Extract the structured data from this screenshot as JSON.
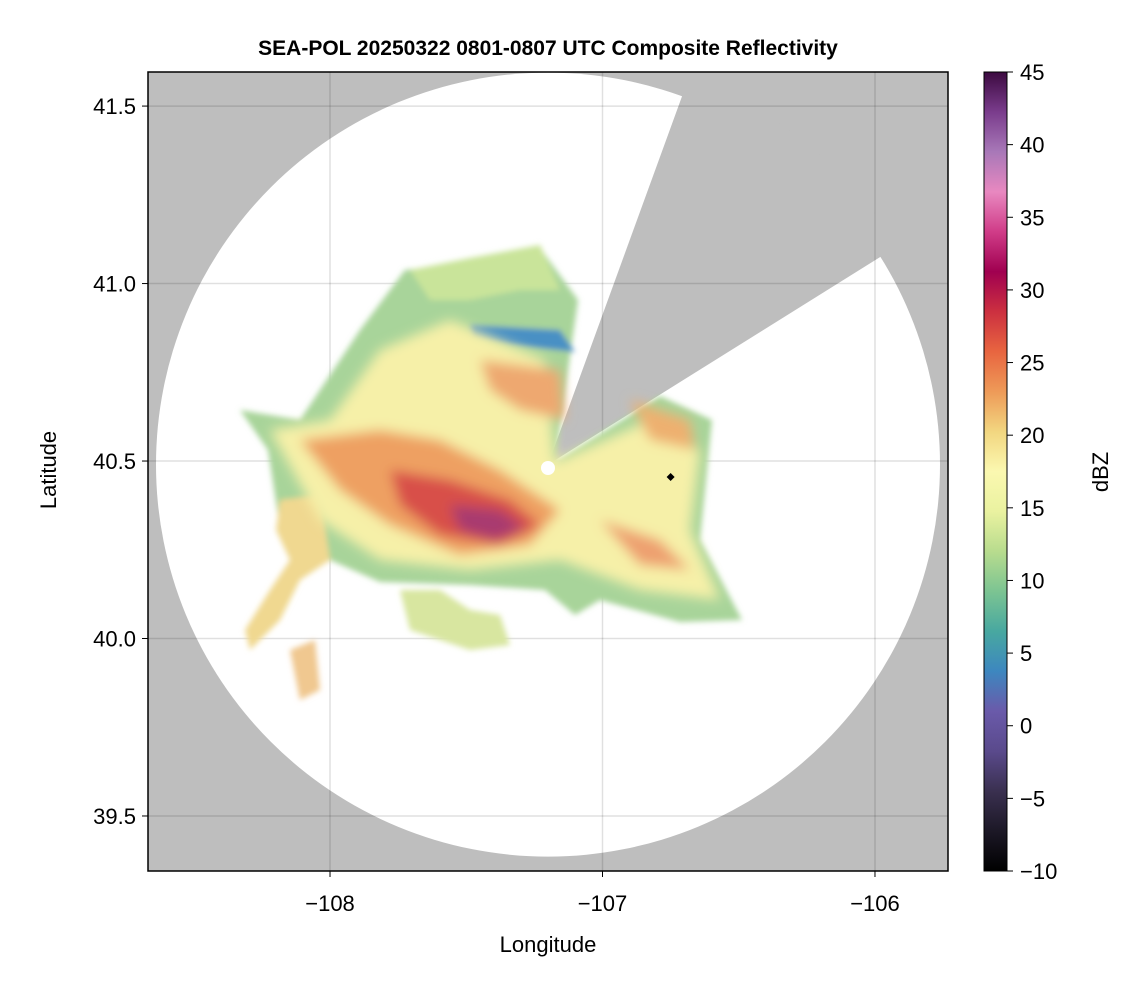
{
  "chart_data": {
    "type": "heatmap",
    "title": "SEA-POL 20250322 0801-0807 UTC Composite Reflectivity",
    "xlabel": "Longitude",
    "ylabel": "Latitude",
    "xlim": [
      -108.668,
      -105.732
    ],
    "ylim": [
      39.345,
      41.596
    ],
    "xticks": [
      -108,
      -107,
      -106
    ],
    "xtick_labels": [
      "−108",
      "−107",
      "−106"
    ],
    "yticks": [
      39.5,
      40.0,
      40.5,
      41.0,
      41.5
    ],
    "ytick_labels": [
      "39.5",
      "40.0",
      "40.5",
      "41.0",
      "41.5"
    ],
    "grid": true,
    "radar_center": {
      "lon": -107.2,
      "lat": 40.49
    },
    "radar_range_deg_lon": 1.43,
    "blocked_sector_bearing_deg": [
      20,
      58
    ],
    "marker": {
      "lon": -106.75,
      "lat": 40.455,
      "symbol": "diamond",
      "color": "#000000"
    },
    "colorbar": {
      "label": "dBZ",
      "range": [
        -10,
        45
      ],
      "ticks": [
        -10,
        -5,
        0,
        5,
        10,
        15,
        20,
        25,
        30,
        35,
        40,
        45
      ],
      "tick_labels": [
        "−10",
        "−5",
        "0",
        "5",
        "10",
        "15",
        "20",
        "25",
        "30",
        "35",
        "40",
        "45"
      ],
      "colors": [
        "#000000",
        "#1c1826",
        "#3a3050",
        "#5a4a8c",
        "#6a5aaa",
        "#3d87bf",
        "#48a8a0",
        "#7cc492",
        "#b8dc8e",
        "#eaf2a0",
        "#fbf8b0",
        "#f2d680",
        "#ee9a58",
        "#e86540",
        "#cc3040",
        "#a00050",
        "#d03c88",
        "#e888c0",
        "#a878b8",
        "#7a3c8c",
        "#3c0a40"
      ]
    },
    "background_color": "#bebebe",
    "coverage_color": "#ffffff"
  }
}
